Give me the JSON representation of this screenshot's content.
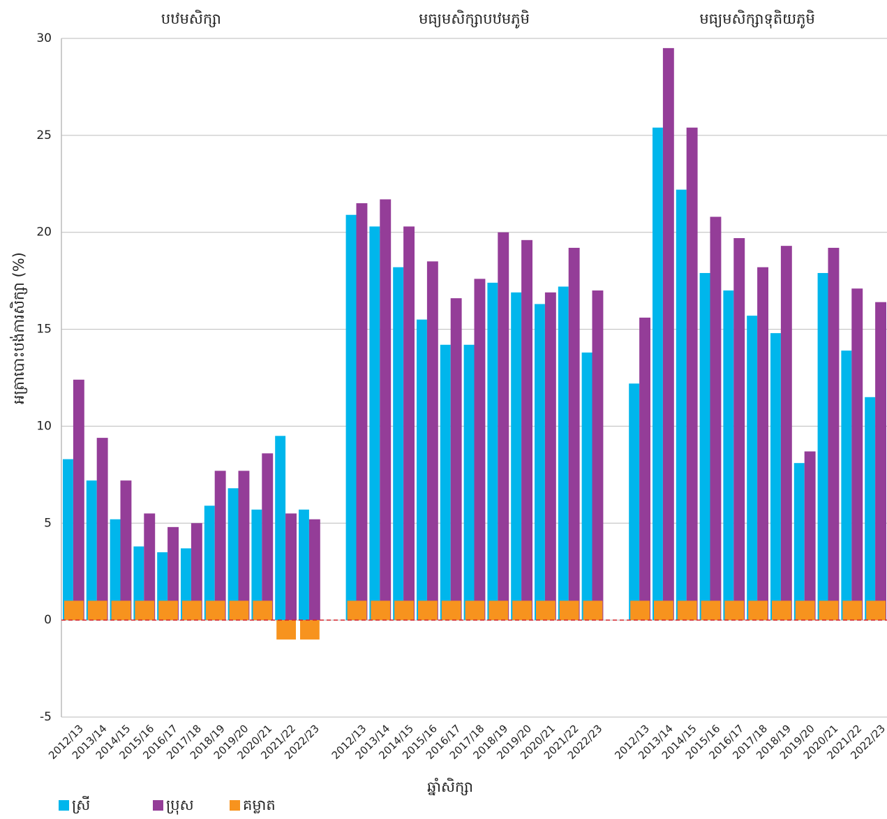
{
  "chart_data": {
    "type": "bar",
    "groups": [
      "បឋមសិក្សា",
      "មធ្យមសិក្សាបឋមភូមិ",
      "មធ្យមសិក្សាទុតិយភូមិ"
    ],
    "categories": [
      "2012/13",
      "2013/14",
      "2014/15",
      "2015/16",
      "2016/17",
      "2017/18",
      "2018/19",
      "2019/20",
      "2020/21",
      "2021/22",
      "2022/23",
      null,
      "2012/13",
      "2013/14",
      "2014/15",
      "2015/16",
      "2016/17",
      "2017/18",
      "2018/19",
      "2019/20",
      "2020/21",
      "2021/22",
      "2022/23",
      null,
      "2012/13",
      "2013/14",
      "2014/15",
      "2015/16",
      "2016/17",
      "2017/18",
      "2018/19",
      "2019/20",
      "2020/21",
      "2021/22",
      "2022/23"
    ],
    "series": [
      {
        "name": "ស្រី",
        "color": "#00b6ec",
        "values": [
          8.3,
          7.2,
          5.2,
          3.8,
          3.5,
          3.7,
          5.9,
          6.8,
          5.7,
          9.5,
          5.7,
          null,
          20.9,
          20.3,
          18.2,
          15.5,
          14.2,
          14.2,
          17.4,
          16.9,
          16.3,
          17.2,
          13.8,
          null,
          12.2,
          25.4,
          22.2,
          17.9,
          17.0,
          15.7,
          14.8,
          8.1,
          17.9,
          13.9,
          11.5
        ]
      },
      {
        "name": "ប្រុស",
        "color": "#943d98",
        "values": [
          12.4,
          9.4,
          7.2,
          5.5,
          4.8,
          5.0,
          7.7,
          7.7,
          8.6,
          5.5,
          5.2,
          null,
          21.5,
          21.7,
          20.3,
          18.5,
          16.6,
          17.6,
          20.0,
          19.6,
          16.9,
          19.2,
          17.0,
          null,
          15.6,
          29.5,
          25.4,
          20.8,
          19.7,
          18.2,
          19.3,
          8.7,
          19.2,
          17.1,
          16.4
        ]
      },
      {
        "name": "គម្លាត",
        "color": "#f7931e",
        "values": [
          1,
          1,
          1,
          1,
          1,
          1,
          1,
          1,
          1,
          -1,
          -1,
          null,
          1,
          1,
          1,
          1,
          1,
          1,
          1,
          1,
          1,
          1,
          1,
          null,
          1,
          1,
          1,
          1,
          1,
          1,
          1,
          1,
          1,
          1,
          1
        ]
      }
    ],
    "x_label": "ឆ្នាំសិក្សា",
    "y_label": "អត្រាបោះបង់ការសិក្សា (%)",
    "ylim": [
      -5,
      30
    ],
    "yticks": [
      -5,
      0,
      5,
      10,
      15,
      20,
      25,
      30
    ],
    "grid": true
  }
}
